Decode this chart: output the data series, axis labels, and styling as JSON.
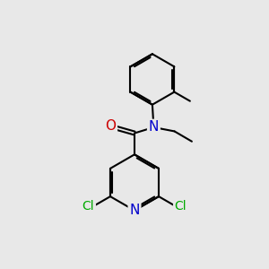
{
  "bg_color": "#e8e8e8",
  "bond_color": "#000000",
  "bond_width": 1.5,
  "atom_colors": {
    "N": "#0000cc",
    "O": "#cc0000",
    "Cl": "#00aa00"
  },
  "font_size": 10
}
